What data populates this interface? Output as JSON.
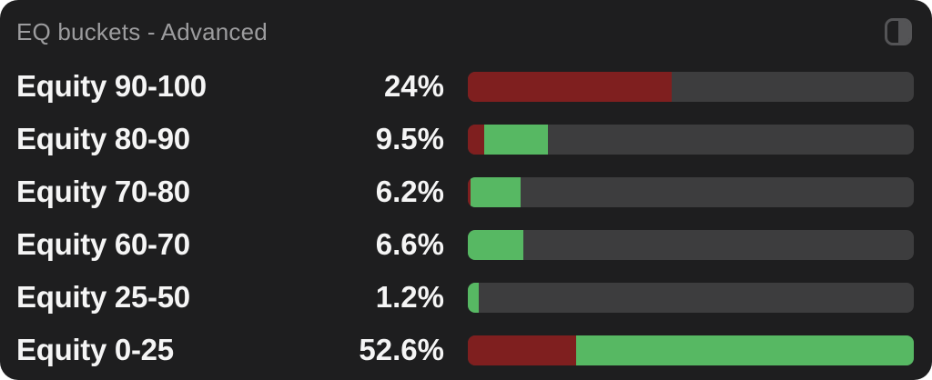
{
  "header": {
    "title": "EQ buckets - Advanced",
    "icon": "panel-toggle-icon"
  },
  "colors": {
    "widget_background": "#1e1e1f",
    "page_background": "#ffffff",
    "bar_track": "#3d3d3e",
    "bar_red": "#7f1f1f",
    "bar_green": "#57b863",
    "title_text": "#9c9c9e",
    "label_text": "#f5f5f5"
  },
  "rows": [
    {
      "label": "Equity 90-100",
      "value": "24%",
      "red_pct": 45.7,
      "green_pct": 0
    },
    {
      "label": "Equity 80-90",
      "value": "9.5%",
      "red_pct": 3.7,
      "green_pct": 14.3
    },
    {
      "label": "Equity 70-80",
      "value": "6.2%",
      "red_pct": 0.6,
      "green_pct": 11.2
    },
    {
      "label": "Equity 60-70",
      "value": "6.6%",
      "red_pct": 0,
      "green_pct": 12.5
    },
    {
      "label": "Equity 25-50",
      "value": "1.2%",
      "red_pct": 0,
      "green_pct": 2.4
    },
    {
      "label": "Equity 0-25",
      "value": "52.6%",
      "red_pct": 24.2,
      "green_pct": 75.8
    }
  ],
  "chart_data": {
    "type": "bar",
    "orientation": "horizontal",
    "title": "EQ buckets - Advanced",
    "categories": [
      "Equity 90-100",
      "Equity 80-90",
      "Equity 70-80",
      "Equity 60-70",
      "Equity 25-50",
      "Equity 0-25"
    ],
    "values": [
      24,
      9.5,
      6.2,
      6.6,
      1.2,
      52.6
    ],
    "value_labels": [
      "24%",
      "9.5%",
      "6.2%",
      "6.6%",
      "1.2%",
      "52.6%"
    ],
    "bar_scale_note": "bar fill lengths normalized to max value 52.6 = full track",
    "series": [
      {
        "name": "red-segment-pct-of-track",
        "values": [
          45.7,
          3.7,
          0.6,
          0,
          0,
          24.2
        ]
      },
      {
        "name": "green-segment-pct-of-track",
        "values": [
          0,
          14.3,
          11.2,
          12.5,
          2.4,
          75.8
        ]
      }
    ],
    "legend": false,
    "grid": false
  }
}
